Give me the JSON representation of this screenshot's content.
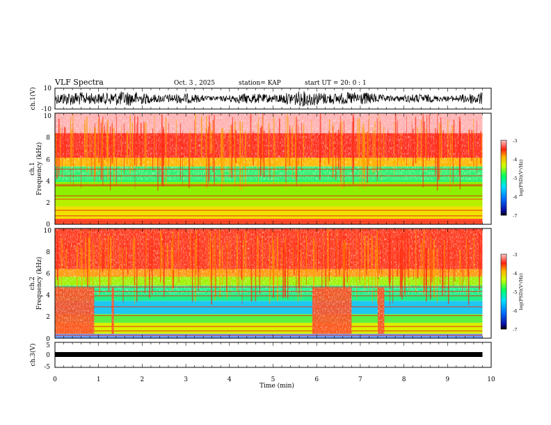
{
  "header": {
    "title": "VLF Spectra",
    "date": "Oct. 3 , 2025",
    "station": "station= KAP",
    "start_time": "start  UT  =   20: 0  : 1"
  },
  "chart_data": {
    "type": "heatmap",
    "title": "VLF Spectra",
    "xlabel": "Time  (min)",
    "x_range": [
      0,
      10
    ],
    "x_ticks": [
      "0",
      "1",
      "2",
      "3",
      "4",
      "5",
      "6",
      "7",
      "8",
      "9",
      "10"
    ],
    "panels": [
      {
        "name": "ch.1 waveform",
        "ylabel": "ch.1(V)",
        "ylim": [
          -10,
          10
        ],
        "y_ticks": [
          "10",
          "-10"
        ]
      },
      {
        "name": "ch.1 spectrogram",
        "ylabel_top": "ch.1",
        "ylabel": "Frequency  (kHz)",
        "ylim": [
          0,
          10
        ],
        "y_ticks": [
          "0",
          "2",
          "4",
          "6",
          "8",
          "10"
        ],
        "colorbar_label": "log(PSD)(V²/Hz)",
        "colorbar_ticks": [
          "-3",
          "-4",
          "-5",
          "-6",
          "-7"
        ],
        "colorbar_range": [
          -7,
          -3
        ]
      },
      {
        "name": "ch.2 spectrogram",
        "ylabel_top": "ch.2",
        "ylabel": "Frequency  (kHz)",
        "ylim": [
          0,
          10
        ],
        "y_ticks": [
          "0",
          "2",
          "4",
          "6",
          "8",
          "10"
        ],
        "colorbar_label": "log(PSD)(V²/Hz)",
        "colorbar_ticks": [
          "-3",
          "-4",
          "-5",
          "-6",
          "-7"
        ],
        "colorbar_range": [
          -7,
          -3
        ],
        "broadband_events_min": [
          [
            0.0,
            0.9
          ],
          [
            1.3,
            1.35
          ],
          [
            5.9,
            6.8
          ],
          [
            7.4,
            7.55
          ]
        ]
      },
      {
        "name": "ch.3 waveform",
        "ylabel": "ch.3(V)",
        "ylim": [
          -5,
          5
        ],
        "y_ticks": [
          "5",
          "0",
          "-5"
        ],
        "data_end_min": 9.8
      }
    ],
    "data_end_min": 9.8
  }
}
